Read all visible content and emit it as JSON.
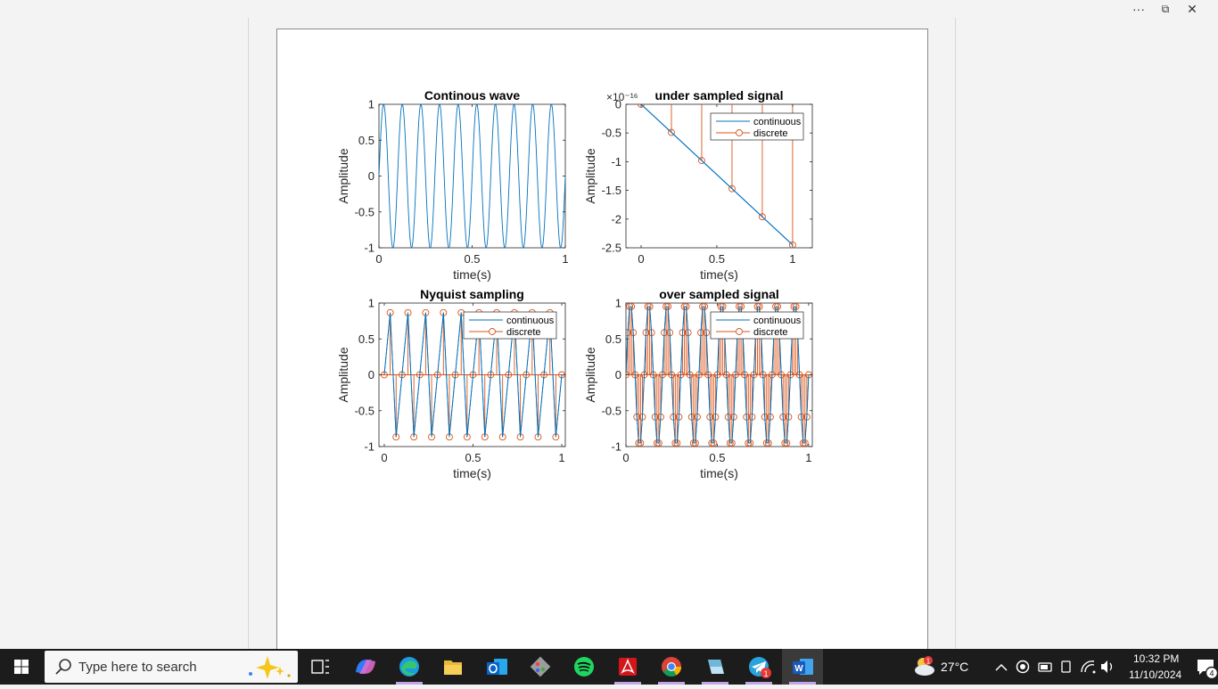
{
  "window_controls": {
    "more": "···",
    "restore": "⧉",
    "close": "✕"
  },
  "figure": {
    "ylabel": "Amplitude",
    "xlabel": "time(s)",
    "legend": {
      "continuous": "continuous",
      "discrete": "discrete"
    }
  },
  "chart_data": [
    {
      "type": "line",
      "title": "Continous wave",
      "xlabel": "time(s)",
      "ylabel": "Amplitude",
      "xlim": [
        0,
        1
      ],
      "ylim": [
        -1,
        1
      ],
      "xticks": [
        "0",
        "0.5",
        "1"
      ],
      "yticks": [
        "1",
        "0.5",
        "0",
        "-0.5",
        "-1"
      ],
      "series": [
        {
          "kind": "sine",
          "frequency_hz": 10,
          "color": "#0072BD"
        }
      ]
    },
    {
      "type": "line",
      "title": "under sampled signal",
      "xlabel": "time(s)",
      "ylabel": "Amplitude",
      "xlim": [
        -0.1,
        1.13
      ],
      "ylim": [
        -2.5,
        0
      ],
      "yexponent": "×10⁻¹⁶",
      "xticks": [
        "0",
        "0.5",
        "1"
      ],
      "yticks": [
        "0",
        "-0.5",
        "-1",
        "-1.5",
        "-2",
        "-2.5"
      ],
      "legend_position": "top-right",
      "series": [
        {
          "name": "continuous",
          "kind": "line",
          "x": [
            0,
            1
          ],
          "y": [
            0,
            -2.45
          ],
          "color": "#0072BD"
        },
        {
          "name": "discrete",
          "kind": "stem",
          "x": [
            0,
            0.2,
            0.4,
            0.6,
            0.8,
            1.0
          ],
          "y": [
            0,
            -0.49,
            -0.98,
            -1.47,
            -1.96,
            -2.45
          ],
          "color": "#D95319"
        }
      ]
    },
    {
      "type": "line",
      "title": "Nyquist sampling",
      "xlabel": "time(s)",
      "ylabel": "Amplitude",
      "xlim": [
        -0.03,
        1.02
      ],
      "ylim": [
        -1,
        1
      ],
      "xticks": [
        "0",
        "0.5",
        "1"
      ],
      "yticks": [
        "1",
        "0.5",
        "0",
        "-0.5",
        "-1"
      ],
      "legend_position": "top-right",
      "series": [
        {
          "name": "continuous",
          "kind": "sampled-sine",
          "frequency_hz": 10,
          "sample_rate_hz": 30,
          "color": "#0072BD"
        },
        {
          "name": "discrete",
          "kind": "stem-sampled-sine",
          "frequency_hz": 10,
          "sample_rate_hz": 30,
          "color": "#D95319"
        }
      ]
    },
    {
      "type": "line",
      "title": "over sampled signal",
      "xlabel": "time(s)",
      "ylabel": "Amplitude",
      "xlim": [
        0,
        1.02
      ],
      "ylim": [
        -1,
        1
      ],
      "xticks": [
        "0",
        "0.5",
        "1"
      ],
      "yticks": [
        "1",
        "0.5",
        "0",
        "-0.5",
        "-1"
      ],
      "legend_position": "top-right",
      "series": [
        {
          "name": "continuous",
          "kind": "sampled-sine",
          "frequency_hz": 10,
          "sample_rate_hz": 100,
          "color": "#0072BD"
        },
        {
          "name": "discrete",
          "kind": "stem-sampled-sine",
          "frequency_hz": 10,
          "sample_rate_hz": 100,
          "color": "#D95319"
        }
      ]
    }
  ],
  "taskbar": {
    "search_placeholder": "Type here to search",
    "apps": [
      {
        "name": "task-view",
        "icon": "task-view-icon"
      },
      {
        "name": "copilot",
        "icon": "copilot-icon"
      },
      {
        "name": "edge",
        "icon": "edge-icon"
      },
      {
        "name": "file-explorer",
        "icon": "folder-icon"
      },
      {
        "name": "outlook",
        "icon": "outlook-icon"
      },
      {
        "name": "git",
        "icon": "git-icon"
      },
      {
        "name": "spotify",
        "icon": "spotify-icon"
      },
      {
        "name": "acrobat",
        "icon": "pdf-icon"
      },
      {
        "name": "chrome",
        "icon": "chrome-icon"
      },
      {
        "name": "notepad",
        "icon": "notepad-icon"
      },
      {
        "name": "telegram",
        "icon": "telegram-icon",
        "badge": "1"
      },
      {
        "name": "word",
        "icon": "word-icon",
        "active": true
      }
    ],
    "weather": {
      "temp": "27°C",
      "badge": "1"
    },
    "time": "10:32 PM",
    "date": "11/10/2024",
    "notifications": "4"
  }
}
